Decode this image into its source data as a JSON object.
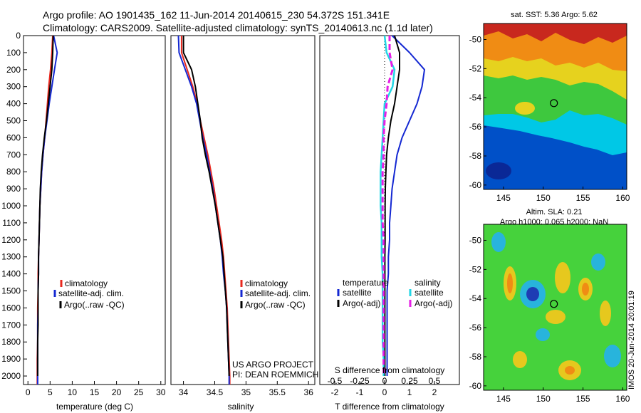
{
  "header": {
    "line1": "Argo profile: AO 1901435_162 11-Jun-2014 20140615_230 54.372S 151.341E",
    "line2": "Climatology: CARS2009. Satellite-adjusted climatology: synTS_20140613.nc (1.1d later)"
  },
  "colors": {
    "climatology": "#e8281e",
    "satellite": "#1428d2",
    "argo": "#000000",
    "temperature_satellite": "#1428d2",
    "salinity_satellite": "#22d6e6",
    "salinity_argo": "#e61ee6"
  },
  "legend_panel": {
    "climatology": "climatology",
    "satellite": "satellite-adj. clim.",
    "argo": "Argo(..raw -QC)"
  },
  "legend_diff": {
    "temperature_header": "temperature",
    "salinity_header": "salinity",
    "satellite": "satellite",
    "argo": "Argo(-adj)"
  },
  "credits": {
    "line1": "US ARGO PROJECT",
    "line2": "PI: DEAN ROEMMICH"
  },
  "timestamp": "IMOS 20-Jun-2014 20:01:19",
  "chart_data": [
    {
      "type": "line",
      "xlabel": "temperature (deg C)",
      "ylabel": "",
      "xlim": [
        -1,
        31
      ],
      "ylim": [
        2050,
        0
      ],
      "xticks": [
        0,
        5,
        10,
        15,
        20,
        25,
        30
      ],
      "yticks": [
        0,
        100,
        200,
        300,
        400,
        500,
        600,
        700,
        800,
        900,
        1000,
        1100,
        1200,
        1300,
        1400,
        1500,
        1600,
        1700,
        1800,
        1900,
        2000
      ],
      "series": [
        {
          "name": "climatology",
          "x": [
            5.6,
            5.4,
            5.1,
            4.7,
            4.4,
            4.1,
            3.8,
            3.4,
            3.1,
            2.9,
            2.7,
            2.6,
            2.5,
            2.4,
            2.3,
            2.3,
            2.2,
            2.2,
            2.2,
            2.1,
            2.1,
            2.1
          ],
          "y": [
            0,
            100,
            200,
            300,
            400,
            500,
            600,
            700,
            800,
            900,
            1000,
            1100,
            1200,
            1300,
            1400,
            1500,
            1600,
            1700,
            1800,
            1900,
            2000,
            2050
          ]
        },
        {
          "name": "satellite-adj. clim.",
          "x": [
            5.8,
            6.6,
            6.0,
            5.4,
            4.8,
            4.3,
            3.8,
            3.4,
            3.1,
            2.9,
            2.7,
            2.6,
            2.5,
            2.4,
            2.4,
            2.3,
            2.3,
            2.2,
            2.2,
            2.2,
            2.2,
            2.2
          ],
          "y": [
            0,
            100,
            200,
            300,
            400,
            500,
            600,
            700,
            800,
            900,
            1000,
            1100,
            1200,
            1300,
            1400,
            1500,
            1600,
            1700,
            1800,
            1900,
            2000,
            2050
          ]
        },
        {
          "name": "Argo(..raw -QC)",
          "x": [
            5.7,
            5.6,
            5.4,
            5.0,
            4.6,
            4.2,
            3.7,
            3.3,
            3.0,
            2.8,
            2.7,
            2.6,
            2.5,
            2.4,
            2.4,
            2.3,
            2.3,
            2.3,
            2.2,
            2.2,
            2.2
          ],
          "y": [
            0,
            100,
            200,
            300,
            400,
            500,
            600,
            700,
            800,
            900,
            1000,
            1100,
            1200,
            1300,
            1400,
            1500,
            1600,
            1700,
            1800,
            1900,
            2000
          ]
        }
      ]
    },
    {
      "type": "line",
      "xlabel": "salinity",
      "ylabel": "",
      "xlim": [
        33.8,
        36.1
      ],
      "ylim": [
        2050,
        0
      ],
      "xticks": [
        34,
        34.5,
        35,
        35.5,
        36
      ],
      "yticks": [
        0,
        100,
        200,
        300,
        400,
        500,
        600,
        700,
        800,
        900,
        1000,
        1100,
        1200,
        1300,
        1400,
        1500,
        1600,
        1700,
        1800,
        1900,
        2000
      ],
      "series": [
        {
          "name": "climatology",
          "x": [
            33.97,
            33.97,
            34.06,
            34.15,
            34.22,
            34.27,
            34.33,
            34.39,
            34.44,
            34.49,
            34.53,
            34.57,
            34.61,
            34.64,
            34.66,
            34.68,
            34.7,
            34.71,
            34.72,
            34.73,
            34.74,
            34.74
          ],
          "y": [
            0,
            100,
            200,
            300,
            400,
            500,
            600,
            700,
            800,
            900,
            1000,
            1100,
            1200,
            1300,
            1400,
            1500,
            1600,
            1700,
            1800,
            1900,
            2000,
            2050
          ]
        },
        {
          "name": "satellite-adj. clim.",
          "x": [
            33.92,
            33.93,
            34.03,
            34.13,
            34.21,
            34.26,
            34.31,
            34.37,
            34.42,
            34.47,
            34.51,
            34.55,
            34.59,
            34.62,
            34.64,
            34.67,
            34.69,
            34.7,
            34.71,
            34.72,
            34.73,
            34.73
          ],
          "y": [
            0,
            100,
            200,
            300,
            400,
            500,
            600,
            700,
            800,
            900,
            1000,
            1100,
            1200,
            1300,
            1400,
            1500,
            1600,
            1700,
            1800,
            1900,
            2000,
            2050
          ]
        },
        {
          "name": "Argo(..raw -QC)",
          "x": [
            34.0,
            34.0,
            34.13,
            34.19,
            34.23,
            34.27,
            34.3,
            34.35,
            34.41,
            34.46,
            34.51,
            34.55,
            34.59,
            34.63,
            34.65,
            34.67,
            34.69,
            34.7,
            34.71,
            34.72,
            34.73
          ],
          "y": [
            0,
            100,
            200,
            300,
            400,
            500,
            600,
            700,
            800,
            900,
            1000,
            1100,
            1200,
            1300,
            1400,
            1500,
            1600,
            1700,
            1800,
            1900,
            2000
          ]
        }
      ]
    },
    {
      "type": "line",
      "xlabel": "T difference from climatology",
      "xlabel2": "S difference from climatology",
      "xlim": [
        -2.6,
        3.0
      ],
      "x2lim": [
        -0.65,
        0.75
      ],
      "ylim": [
        2050,
        0
      ],
      "xticks": [
        -2,
        -1,
        0,
        1,
        2
      ],
      "x2ticks": [
        -0.5,
        -0.25,
        0,
        0.25,
        0.5
      ],
      "x2ticklabels": [
        "-0.5",
        "-0.25",
        "0",
        "0.25",
        "0.5"
      ],
      "series": [
        {
          "name": "temperature satellite",
          "x": [
            0.3,
            1.0,
            1.6,
            1.5,
            1.3,
            1.0,
            0.7,
            0.5,
            0.4,
            0.3,
            0.25,
            0.2,
            0.2,
            0.15,
            0.15,
            0.1,
            0.1,
            0.1,
            0.1,
            0.1,
            0.1
          ],
          "y": [
            0,
            100,
            200,
            300,
            400,
            500,
            600,
            700,
            800,
            900,
            1000,
            1100,
            1200,
            1300,
            1400,
            1500,
            1600,
            1700,
            1800,
            1900,
            2000
          ]
        },
        {
          "name": "temperature Argo(-adj)",
          "x": [
            0.4,
            0.6,
            0.6,
            0.5,
            0.4,
            0.25,
            0.15,
            0.08,
            0.05,
            0.03,
            0.02,
            0.02,
            0.02,
            0.01,
            0.01,
            0.01,
            0.01,
            0.01,
            0.01,
            0.01,
            0.01
          ],
          "y": [
            0,
            100,
            200,
            300,
            400,
            500,
            600,
            700,
            800,
            900,
            1000,
            1100,
            1200,
            1300,
            1400,
            1500,
            1600,
            1700,
            1800,
            1900,
            2000
          ]
        },
        {
          "name": "salinity satellite",
          "x": [
            0.0,
            0.02,
            0.1,
            0.08,
            0.0,
            -0.01,
            -0.02,
            -0.03,
            -0.04,
            -0.04,
            -0.04,
            -0.03,
            -0.03,
            -0.03,
            -0.02,
            -0.02,
            -0.02,
            -0.02,
            -0.02,
            -0.01,
            -0.01
          ],
          "y": [
            0,
            100,
            200,
            300,
            400,
            500,
            600,
            700,
            800,
            900,
            1000,
            1100,
            1200,
            1300,
            1400,
            1500,
            1600,
            1700,
            1800,
            1900,
            2000
          ]
        },
        {
          "name": "salinity Argo(-adj)",
          "x": [
            0.05,
            0.05,
            0.08,
            0.03,
            0.02,
            0.0,
            -0.01,
            -0.01,
            -0.02,
            -0.02,
            -0.02,
            -0.02,
            -0.01,
            -0.01,
            -0.01,
            -0.01,
            -0.01,
            -0.01,
            -0.01,
            -0.01,
            -0.01
          ],
          "y": [
            0,
            100,
            200,
            300,
            400,
            500,
            600,
            700,
            800,
            900,
            1000,
            1100,
            1200,
            1300,
            1400,
            1500,
            1600,
            1700,
            1800,
            1900,
            2000
          ]
        }
      ]
    },
    {
      "type": "heatmap",
      "title": "sat. SST: 5.36 Argo: 5.62",
      "xlim": [
        142.5,
        160.5
      ],
      "ylim": [
        -60.3,
        -48.9
      ],
      "xticks": [
        145,
        150,
        155,
        160
      ],
      "yticks": [
        -50,
        -52,
        -54,
        -56,
        -58,
        -60
      ],
      "marker": {
        "lon": 151.341,
        "lat": -54.372
      }
    },
    {
      "type": "heatmap",
      "title_line1": "Altim. SLA: 0.21",
      "title_line2": "Argo h1000: 0.065 h2000: NaN",
      "xlim": [
        142.5,
        160.5
      ],
      "ylim": [
        -60.3,
        -48.9
      ],
      "xticks": [
        145,
        150,
        155,
        160
      ],
      "yticks": [
        -50,
        -52,
        -54,
        -56,
        -58,
        -60
      ],
      "marker": {
        "lon": 151.341,
        "lat": -54.372
      }
    }
  ]
}
